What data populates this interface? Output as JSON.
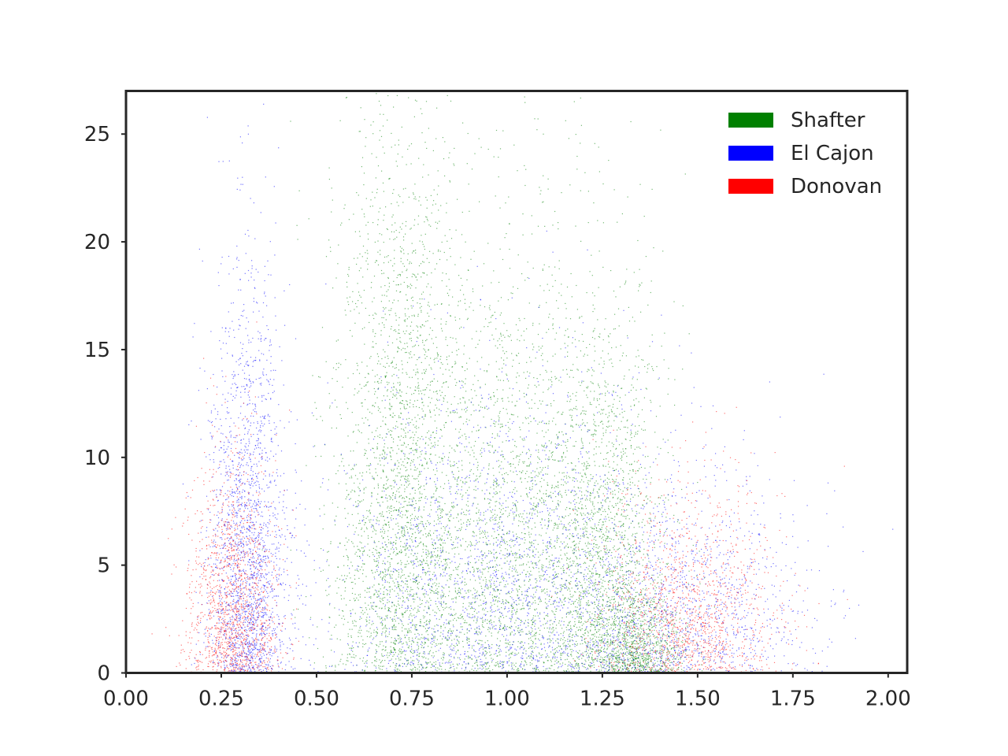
{
  "chart_data": {
    "type": "scatter",
    "title": "",
    "xlabel": "",
    "ylabel": "",
    "xlim": [
      0.0,
      2.05
    ],
    "ylim": [
      0,
      27
    ],
    "xticks": [
      "0.00",
      "0.25",
      "0.50",
      "0.75",
      "1.00",
      "1.25",
      "1.50",
      "1.75",
      "2.00"
    ],
    "yticks": [
      "0",
      "5",
      "10",
      "15",
      "20",
      "25"
    ],
    "xtick_values": [
      0.0,
      0.25,
      0.5,
      0.75,
      1.0,
      1.25,
      1.5,
      1.75,
      2.0
    ],
    "ytick_values": [
      0,
      5,
      10,
      15,
      20,
      25
    ],
    "grid": false,
    "legend_position": "top-right",
    "series": [
      {
        "name": "Shafter",
        "color": "#008000",
        "clusters": [
          {
            "x_center": 0.72,
            "x_spread": 0.09,
            "y_max": 27
          },
          {
            "x_center": 1.0,
            "x_spread": 0.12,
            "y_max": 20
          },
          {
            "x_center": 1.25,
            "x_spread": 0.08,
            "y_max": 18
          },
          {
            "x_center": 1.35,
            "x_spread": 0.06,
            "y_max": 4
          }
        ]
      },
      {
        "name": "El Cajon",
        "color": "#0000ff",
        "clusters": [
          {
            "x_center": 0.32,
            "x_spread": 0.05,
            "y_max": 18
          },
          {
            "x_center": 0.95,
            "x_spread": 0.22,
            "y_max": 14
          },
          {
            "x_center": 1.45,
            "x_spread": 0.18,
            "y_max": 10
          }
        ]
      },
      {
        "name": "Donovan",
        "color": "#ff0000",
        "clusters": [
          {
            "x_center": 0.28,
            "x_spread": 0.06,
            "y_max": 10
          },
          {
            "x_center": 1.48,
            "x_spread": 0.12,
            "y_max": 9
          }
        ]
      }
    ]
  }
}
